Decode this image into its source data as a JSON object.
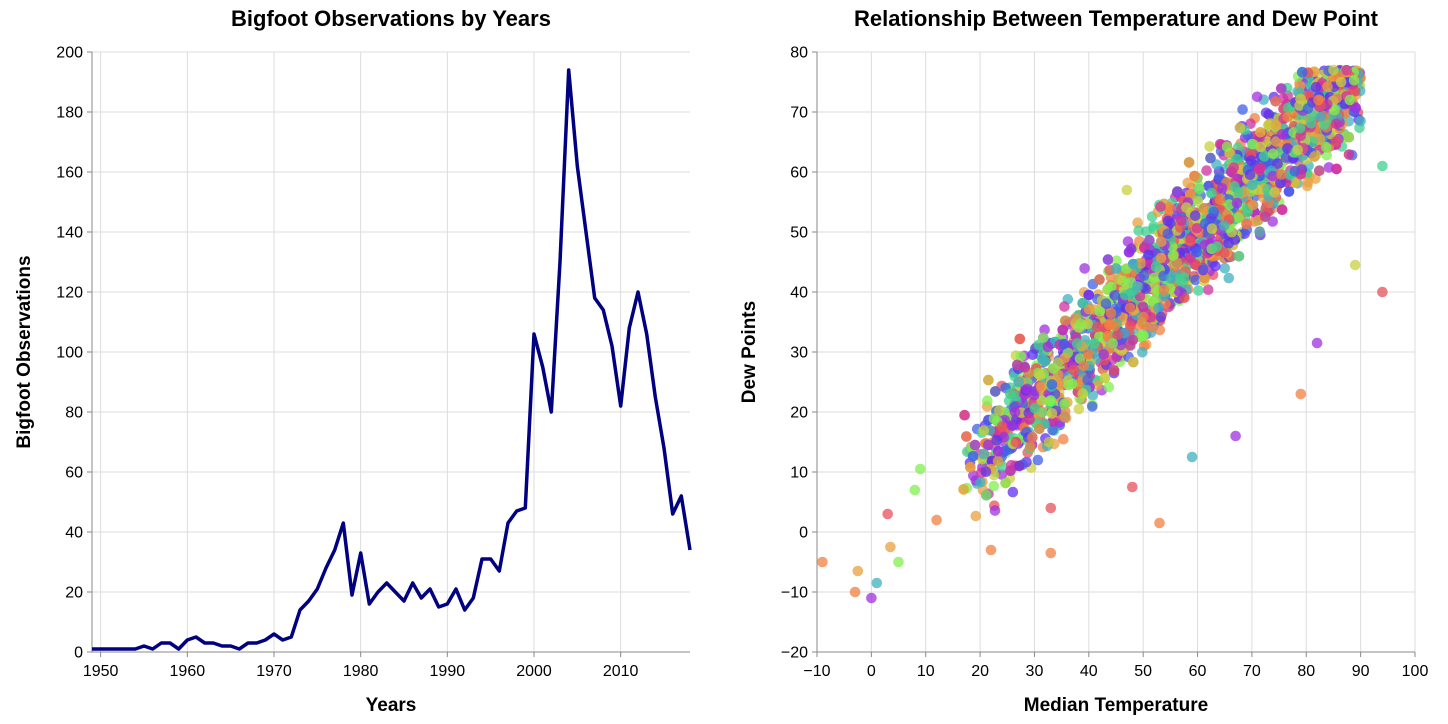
{
  "chart_data": [
    {
      "type": "line",
      "title": "Bigfoot Observations by Years",
      "xlabel": "Years",
      "ylabel": "Bigfoot Observations",
      "xlim": [
        1949,
        2018
      ],
      "ylim": [
        0,
        200
      ],
      "xticks": [
        1950,
        1960,
        1970,
        1980,
        1990,
        2000,
        2010
      ],
      "yticks": [
        0,
        20,
        40,
        60,
        80,
        100,
        120,
        140,
        160,
        180,
        200
      ],
      "grid": true,
      "color": "#000080",
      "x": [
        1949,
        1950,
        1951,
        1952,
        1953,
        1954,
        1955,
        1956,
        1957,
        1958,
        1959,
        1960,
        1961,
        1962,
        1963,
        1964,
        1965,
        1966,
        1967,
        1968,
        1969,
        1970,
        1971,
        1972,
        1973,
        1974,
        1975,
        1976,
        1977,
        1978,
        1979,
        1980,
        1981,
        1982,
        1983,
        1984,
        1985,
        1986,
        1987,
        1988,
        1989,
        1990,
        1991,
        1992,
        1993,
        1994,
        1995,
        1996,
        1997,
        1998,
        1999,
        2000,
        2001,
        2002,
        2003,
        2004,
        2005,
        2006,
        2007,
        2008,
        2009,
        2010,
        2011,
        2012,
        2013,
        2014,
        2015,
        2016,
        2017,
        2018
      ],
      "y": [
        1,
        1,
        1,
        1,
        1,
        1,
        2,
        1,
        3,
        3,
        1,
        4,
        5,
        3,
        3,
        2,
        2,
        1,
        3,
        3,
        4,
        6,
        4,
        5,
        14,
        17,
        21,
        28,
        34,
        43,
        19,
        33,
        16,
        20,
        23,
        20,
        17,
        23,
        18,
        21,
        15,
        16,
        21,
        14,
        18,
        31,
        31,
        27,
        43,
        47,
        48,
        106,
        95,
        80,
        130,
        194,
        162,
        140,
        118,
        114,
        102,
        82,
        108,
        120,
        106,
        85,
        68,
        46,
        52,
        34
      ]
    },
    {
      "type": "scatter",
      "title": "Relationship Between Temperature and Dew Point",
      "xlabel": "Median Temperature",
      "ylabel": "Dew Points",
      "xlim": [
        -10,
        100
      ],
      "ylim": [
        -20,
        80
      ],
      "xticks": [
        -10,
        0,
        10,
        20,
        30,
        40,
        50,
        60,
        70,
        80,
        90,
        100
      ],
      "yticks": [
        -20,
        -10,
        0,
        10,
        20,
        30,
        40,
        50,
        60,
        70,
        80
      ],
      "grid": true,
      "color_palette": [
        "#e8505b",
        "#f08040",
        "#e8a040",
        "#c8d040",
        "#80f050",
        "#40d090",
        "#40b0c0",
        "#4060e8",
        "#6030f0",
        "#a030e0",
        "#d030a0"
      ],
      "point_opacity": 0.75,
      "notable_points": [
        {
          "x": -9,
          "y": -5
        },
        {
          "x": -2.5,
          "y": -6.5
        },
        {
          "x": -3,
          "y": -10
        },
        {
          "x": 0,
          "y": -11
        },
        {
          "x": 1,
          "y": -8.5
        },
        {
          "x": 3,
          "y": 3
        },
        {
          "x": 3.5,
          "y": -2.5
        },
        {
          "x": 5,
          "y": -5
        },
        {
          "x": 8,
          "y": 7
        },
        {
          "x": 9,
          "y": 10.5
        },
        {
          "x": 12,
          "y": 2
        },
        {
          "x": 33,
          "y": -3.5
        },
        {
          "x": 53,
          "y": 1.5
        },
        {
          "x": 89,
          "y": 44.5
        },
        {
          "x": 94,
          "y": 40
        },
        {
          "x": 94,
          "y": 61
        },
        {
          "x": 90,
          "y": 68.5
        },
        {
          "x": 79,
          "y": 23
        },
        {
          "x": 82,
          "y": 31.5
        },
        {
          "x": 59,
          "y": 12.5
        },
        {
          "x": 67,
          "y": 16
        },
        {
          "x": 48,
          "y": 7.5
        },
        {
          "x": 22,
          "y": -3
        },
        {
          "x": 33,
          "y": 4
        },
        {
          "x": 47,
          "y": 57
        },
        {
          "x": 85,
          "y": 77
        },
        {
          "x": 88,
          "y": 72
        }
      ]
    }
  ]
}
